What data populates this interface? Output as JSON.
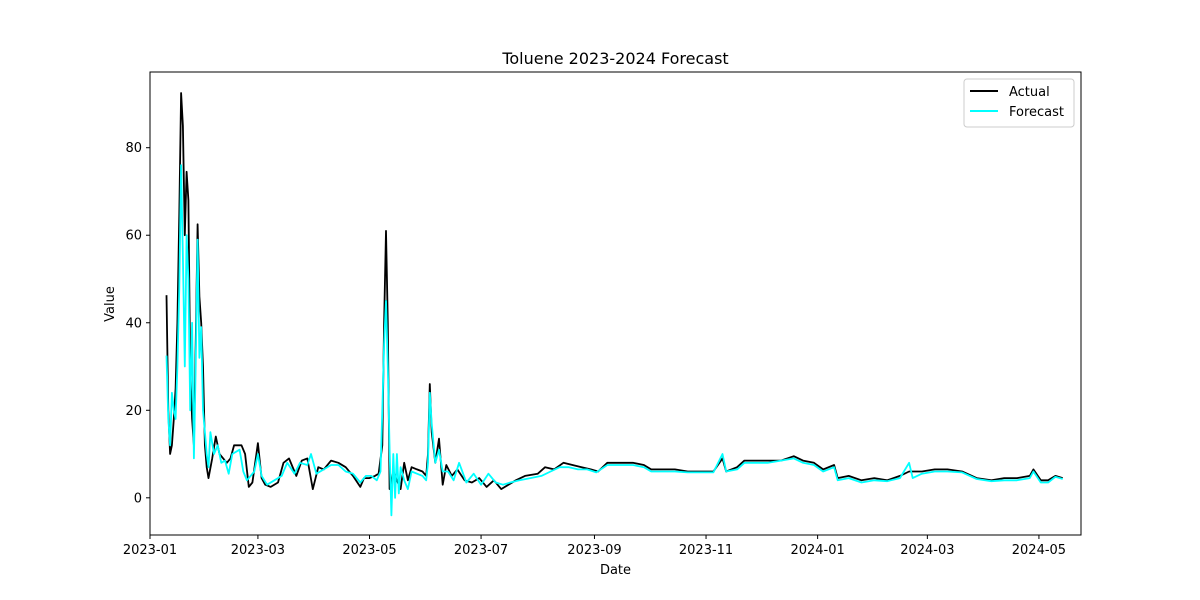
{
  "chart_data": {
    "type": "line",
    "title": "Toluene 2023-2024 Forecast",
    "xlabel": "Date",
    "ylabel": "Value",
    "xlim": [
      "2023-01-01",
      "2024-05-24"
    ],
    "ylim": [
      -8.5,
      97.3
    ],
    "x_ticks": [
      "2023-01",
      "2023-03",
      "2023-05",
      "2023-07",
      "2023-09",
      "2023-11",
      "2024-01",
      "2024-03",
      "2024-05"
    ],
    "y_ticks": [
      0,
      20,
      40,
      60,
      80
    ],
    "grid": false,
    "legend_position": "top-right",
    "series": [
      {
        "name": "Actual",
        "color": "#000000",
        "points": [
          [
            "2023-01-10",
            46.3
          ],
          [
            "2023-01-11",
            20.0
          ],
          [
            "2023-01-12",
            10.0
          ],
          [
            "2023-01-13",
            12.0
          ],
          [
            "2023-01-14",
            18.0
          ],
          [
            "2023-01-15",
            25.0
          ],
          [
            "2023-01-16",
            40.0
          ],
          [
            "2023-01-17",
            65.0
          ],
          [
            "2023-01-18",
            92.5
          ],
          [
            "2023-01-19",
            85.0
          ],
          [
            "2023-01-20",
            60.0
          ],
          [
            "2023-01-21",
            74.5
          ],
          [
            "2023-01-22",
            68.0
          ],
          [
            "2023-01-23",
            30.0
          ],
          [
            "2023-01-24",
            18.0
          ],
          [
            "2023-01-25",
            12.0
          ],
          [
            "2023-01-26",
            35.0
          ],
          [
            "2023-01-27",
            62.5
          ],
          [
            "2023-01-28",
            46.0
          ],
          [
            "2023-01-29",
            40.0
          ],
          [
            "2023-01-30",
            30.0
          ],
          [
            "2023-01-31",
            12.0
          ],
          [
            "2023-02-01",
            7.0
          ],
          [
            "2023-02-02",
            4.5
          ],
          [
            "2023-02-04",
            9.0
          ],
          [
            "2023-02-06",
            14.0
          ],
          [
            "2023-02-08",
            10.0
          ],
          [
            "2023-02-10",
            9.0
          ],
          [
            "2023-02-12",
            8.0
          ],
          [
            "2023-02-14",
            9.0
          ],
          [
            "2023-02-16",
            12.0
          ],
          [
            "2023-02-20",
            12.0
          ],
          [
            "2023-02-22",
            10.0
          ],
          [
            "2023-02-24",
            2.5
          ],
          [
            "2023-02-26",
            3.5
          ],
          [
            "2023-02-28",
            9.5
          ],
          [
            "2023-03-01",
            12.5
          ],
          [
            "2023-03-03",
            4.5
          ],
          [
            "2023-03-05",
            3.0
          ],
          [
            "2023-03-08",
            2.5
          ],
          [
            "2023-03-12",
            3.5
          ],
          [
            "2023-03-15",
            8.0
          ],
          [
            "2023-03-18",
            9.0
          ],
          [
            "2023-03-22",
            5.0
          ],
          [
            "2023-03-25",
            8.5
          ],
          [
            "2023-03-28",
            9.0
          ],
          [
            "2023-03-31",
            2.0
          ],
          [
            "2023-04-03",
            7.0
          ],
          [
            "2023-04-06",
            6.5
          ],
          [
            "2023-04-10",
            8.5
          ],
          [
            "2023-04-14",
            8.0
          ],
          [
            "2023-04-18",
            7.0
          ],
          [
            "2023-04-22",
            5.0
          ],
          [
            "2023-04-26",
            2.5
          ],
          [
            "2023-04-28",
            4.5
          ],
          [
            "2023-05-01",
            4.5
          ],
          [
            "2023-05-04",
            5.0
          ],
          [
            "2023-05-06",
            5.5
          ],
          [
            "2023-05-08",
            12.0
          ],
          [
            "2023-05-09",
            40.0
          ],
          [
            "2023-05-10",
            61.0
          ],
          [
            "2023-05-11",
            40.0
          ],
          [
            "2023-05-12",
            2.0
          ],
          [
            "2023-05-14",
            6.0
          ],
          [
            "2023-05-16",
            4.0
          ],
          [
            "2023-05-18",
            2.0
          ],
          [
            "2023-05-20",
            8.0
          ],
          [
            "2023-05-22",
            4.0
          ],
          [
            "2023-05-24",
            7.0
          ],
          [
            "2023-05-27",
            6.5
          ],
          [
            "2023-05-30",
            6.0
          ],
          [
            "2023-06-01",
            5.0
          ],
          [
            "2023-06-02",
            10.0
          ],
          [
            "2023-06-03",
            26.0
          ],
          [
            "2023-06-04",
            15.0
          ],
          [
            "2023-06-06",
            8.0
          ],
          [
            "2023-06-08",
            13.5
          ],
          [
            "2023-06-10",
            3.0
          ],
          [
            "2023-06-12",
            7.5
          ],
          [
            "2023-06-15",
            5.0
          ],
          [
            "2023-06-18",
            6.5
          ],
          [
            "2023-06-22",
            4.0
          ],
          [
            "2023-06-26",
            3.5
          ],
          [
            "2023-06-30",
            4.5
          ],
          [
            "2023-07-04",
            2.5
          ],
          [
            "2023-07-08",
            4.0
          ],
          [
            "2023-07-12",
            2.0
          ],
          [
            "2023-07-16",
            3.0
          ],
          [
            "2023-07-20",
            4.0
          ],
          [
            "2023-07-25",
            5.0
          ],
          [
            "2023-08-01",
            5.5
          ],
          [
            "2023-08-05",
            7.0
          ],
          [
            "2023-08-10",
            6.5
          ],
          [
            "2023-08-15",
            8.0
          ],
          [
            "2023-08-20",
            7.5
          ],
          [
            "2023-08-25",
            7.0
          ],
          [
            "2023-08-30",
            6.5
          ],
          [
            "2023-09-03",
            6.0
          ],
          [
            "2023-09-08",
            8.0
          ],
          [
            "2023-09-15",
            8.0
          ],
          [
            "2023-09-22",
            8.0
          ],
          [
            "2023-09-28",
            7.5
          ],
          [
            "2023-10-02",
            6.5
          ],
          [
            "2023-10-08",
            6.5
          ],
          [
            "2023-10-15",
            6.5
          ],
          [
            "2023-10-22",
            6.0
          ],
          [
            "2023-10-29",
            6.0
          ],
          [
            "2023-11-05",
            6.0
          ],
          [
            "2023-11-10",
            9.0
          ],
          [
            "2023-11-12",
            6.0
          ],
          [
            "2023-11-18",
            7.0
          ],
          [
            "2023-11-22",
            8.5
          ],
          [
            "2023-11-29",
            8.5
          ],
          [
            "2023-12-05",
            8.5
          ],
          [
            "2023-12-12",
            8.5
          ],
          [
            "2023-12-19",
            9.5
          ],
          [
            "2023-12-24",
            8.5
          ],
          [
            "2023-12-30",
            8.0
          ],
          [
            "2024-01-04",
            6.5
          ],
          [
            "2024-01-10",
            7.5
          ],
          [
            "2024-01-12",
            4.5
          ],
          [
            "2024-01-18",
            5.0
          ],
          [
            "2024-01-25",
            4.0
          ],
          [
            "2024-02-01",
            4.5
          ],
          [
            "2024-02-08",
            4.0
          ],
          [
            "2024-02-15",
            5.0
          ],
          [
            "2024-02-20",
            6.0
          ],
          [
            "2024-02-27",
            6.0
          ],
          [
            "2024-03-05",
            6.5
          ],
          [
            "2024-03-12",
            6.5
          ],
          [
            "2024-03-20",
            6.0
          ],
          [
            "2024-03-28",
            4.5
          ],
          [
            "2024-04-05",
            4.0
          ],
          [
            "2024-04-12",
            4.5
          ],
          [
            "2024-04-19",
            4.5
          ],
          [
            "2024-04-26",
            5.0
          ],
          [
            "2024-04-28",
            6.5
          ],
          [
            "2024-05-02",
            4.0
          ],
          [
            "2024-05-06",
            4.0
          ],
          [
            "2024-05-10",
            5.0
          ],
          [
            "2024-05-14",
            4.5
          ]
        ]
      },
      {
        "name": "Forecast",
        "color": "#00ffff",
        "points": [
          [
            "2023-01-10",
            32.5
          ],
          [
            "2023-01-11",
            18.0
          ],
          [
            "2023-01-12",
            12.0
          ],
          [
            "2023-01-13",
            24.0
          ],
          [
            "2023-01-14",
            20.0
          ],
          [
            "2023-01-15",
            18.0
          ],
          [
            "2023-01-16",
            30.0
          ],
          [
            "2023-01-17",
            48.0
          ],
          [
            "2023-01-18",
            76.0
          ],
          [
            "2023-01-19",
            55.0
          ],
          [
            "2023-01-20",
            30.0
          ],
          [
            "2023-01-21",
            60.0
          ],
          [
            "2023-01-22",
            50.0
          ],
          [
            "2023-01-23",
            20.0
          ],
          [
            "2023-01-24",
            40.0
          ],
          [
            "2023-01-25",
            9.0
          ],
          [
            "2023-01-26",
            30.0
          ],
          [
            "2023-01-27",
            59.0
          ],
          [
            "2023-01-28",
            32.0
          ],
          [
            "2023-01-29",
            39.0
          ],
          [
            "2023-01-30",
            20.0
          ],
          [
            "2023-01-31",
            15.0
          ],
          [
            "2023-02-01",
            10.0
          ],
          [
            "2023-02-02",
            7.0
          ],
          [
            "2023-02-03",
            15.0
          ],
          [
            "2023-02-05",
            10.0
          ],
          [
            "2023-02-07",
            12.0
          ],
          [
            "2023-02-09",
            8.0
          ],
          [
            "2023-02-11",
            8.5
          ],
          [
            "2023-02-13",
            5.5
          ],
          [
            "2023-02-15",
            10.0
          ],
          [
            "2023-02-19",
            11.0
          ],
          [
            "2023-02-21",
            6.0
          ],
          [
            "2023-02-23",
            4.0
          ],
          [
            "2023-02-25",
            5.0
          ],
          [
            "2023-02-27",
            6.0
          ],
          [
            "2023-03-01",
            10.0
          ],
          [
            "2023-03-03",
            5.0
          ],
          [
            "2023-03-06",
            3.0
          ],
          [
            "2023-03-10",
            4.0
          ],
          [
            "2023-03-14",
            5.0
          ],
          [
            "2023-03-17",
            8.0
          ],
          [
            "2023-03-21",
            5.5
          ],
          [
            "2023-03-24",
            8.0
          ],
          [
            "2023-03-28",
            7.5
          ],
          [
            "2023-03-30",
            10.0
          ],
          [
            "2023-04-02",
            5.5
          ],
          [
            "2023-04-06",
            6.5
          ],
          [
            "2023-04-10",
            7.5
          ],
          [
            "2023-04-14",
            7.5
          ],
          [
            "2023-04-18",
            6.0
          ],
          [
            "2023-04-22",
            5.5
          ],
          [
            "2023-04-26",
            3.5
          ],
          [
            "2023-04-29",
            5.0
          ],
          [
            "2023-05-02",
            5.0
          ],
          [
            "2023-05-05",
            4.0
          ],
          [
            "2023-05-07",
            6.0
          ],
          [
            "2023-05-08",
            20.0
          ],
          [
            "2023-05-09",
            35.0
          ],
          [
            "2023-05-10",
            45.0
          ],
          [
            "2023-05-11",
            30.0
          ],
          [
            "2023-05-12",
            11.0
          ],
          [
            "2023-05-13",
            -4.0
          ],
          [
            "2023-05-14",
            10.0
          ],
          [
            "2023-05-15",
            0.0
          ],
          [
            "2023-05-16",
            10.0
          ],
          [
            "2023-05-17",
            1.0
          ],
          [
            "2023-05-18",
            7.0
          ],
          [
            "2023-05-20",
            4.0
          ],
          [
            "2023-05-22",
            2.0
          ],
          [
            "2023-05-24",
            6.0
          ],
          [
            "2023-05-27",
            5.5
          ],
          [
            "2023-05-30",
            5.0
          ],
          [
            "2023-06-01",
            4.0
          ],
          [
            "2023-06-02",
            8.0
          ],
          [
            "2023-06-03",
            24.0
          ],
          [
            "2023-06-04",
            17.0
          ],
          [
            "2023-06-06",
            8.0
          ],
          [
            "2023-06-08",
            11.0
          ],
          [
            "2023-06-10",
            6.0
          ],
          [
            "2023-06-13",
            6.0
          ],
          [
            "2023-06-16",
            4.0
          ],
          [
            "2023-06-19",
            8.0
          ],
          [
            "2023-06-23",
            3.5
          ],
          [
            "2023-06-27",
            5.5
          ],
          [
            "2023-07-01",
            3.0
          ],
          [
            "2023-07-05",
            5.5
          ],
          [
            "2023-07-09",
            3.5
          ],
          [
            "2023-07-13",
            3.0
          ],
          [
            "2023-07-17",
            3.5
          ],
          [
            "2023-07-22",
            4.0
          ],
          [
            "2023-07-28",
            4.5
          ],
          [
            "2023-08-03",
            5.0
          ],
          [
            "2023-08-08",
            6.0
          ],
          [
            "2023-08-13",
            7.0
          ],
          [
            "2023-08-18",
            7.0
          ],
          [
            "2023-08-23",
            6.5
          ],
          [
            "2023-08-28",
            6.5
          ],
          [
            "2023-09-02",
            5.8
          ],
          [
            "2023-09-08",
            7.5
          ],
          [
            "2023-09-15",
            7.5
          ],
          [
            "2023-09-22",
            7.5
          ],
          [
            "2023-09-28",
            7.0
          ],
          [
            "2023-10-02",
            6.0
          ],
          [
            "2023-10-08",
            6.0
          ],
          [
            "2023-10-15",
            6.0
          ],
          [
            "2023-10-22",
            5.8
          ],
          [
            "2023-10-29",
            5.8
          ],
          [
            "2023-11-05",
            5.8
          ],
          [
            "2023-11-10",
            10.0
          ],
          [
            "2023-11-12",
            6.0
          ],
          [
            "2023-11-18",
            6.5
          ],
          [
            "2023-11-22",
            8.0
          ],
          [
            "2023-11-29",
            8.0
          ],
          [
            "2023-12-05",
            8.0
          ],
          [
            "2023-12-12",
            8.5
          ],
          [
            "2023-12-19",
            9.0
          ],
          [
            "2023-12-24",
            8.0
          ],
          [
            "2023-12-30",
            7.5
          ],
          [
            "2024-01-04",
            6.0
          ],
          [
            "2024-01-10",
            7.0
          ],
          [
            "2024-01-12",
            4.0
          ],
          [
            "2024-01-18",
            4.5
          ],
          [
            "2024-01-25",
            3.5
          ],
          [
            "2024-02-01",
            4.0
          ],
          [
            "2024-02-08",
            3.8
          ],
          [
            "2024-02-15",
            4.5
          ],
          [
            "2024-02-20",
            8.0
          ],
          [
            "2024-02-22",
            4.5
          ],
          [
            "2024-02-27",
            5.5
          ],
          [
            "2024-03-05",
            6.0
          ],
          [
            "2024-03-12",
            6.0
          ],
          [
            "2024-03-20",
            5.8
          ],
          [
            "2024-03-28",
            4.3
          ],
          [
            "2024-04-05",
            3.8
          ],
          [
            "2024-04-12",
            4.0
          ],
          [
            "2024-04-19",
            4.0
          ],
          [
            "2024-04-26",
            4.5
          ],
          [
            "2024-04-28",
            6.0
          ],
          [
            "2024-05-02",
            3.5
          ],
          [
            "2024-05-06",
            3.5
          ],
          [
            "2024-05-10",
            4.8
          ],
          [
            "2024-05-14",
            4.3
          ]
        ]
      }
    ]
  }
}
